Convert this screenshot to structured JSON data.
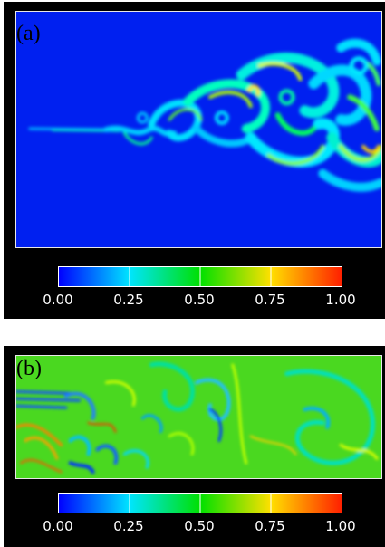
{
  "panel_a": {
    "label": "(a)",
    "colorbar_ticks": [
      "0.00",
      "0.25",
      "0.50",
      "0.75",
      "1.00"
    ]
  },
  "panel_b": {
    "label": "(b)",
    "colorbar_ticks": [
      "0.00",
      "0.25",
      "0.50",
      "0.75",
      "1.00"
    ]
  },
  "colormap": [
    "#0000ff",
    "#00e5ff",
    "#00e000",
    "#c8f000",
    "#ffe000",
    "#ff2000"
  ],
  "colors": {
    "background_a": "#0020f0",
    "background_b": "#4ad820",
    "frame": "#000000"
  }
}
